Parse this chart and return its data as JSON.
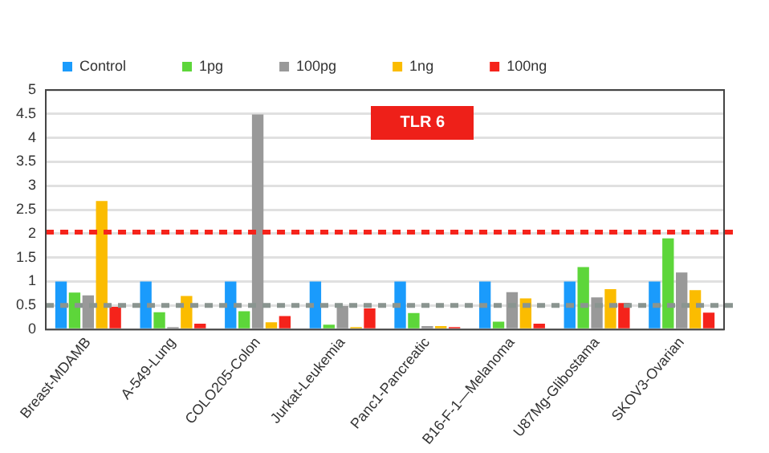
{
  "chart_data": {
    "type": "bar",
    "annotations": [
      "TLR 6"
    ],
    "categories": [
      "Breast-MDAMB",
      "A-549-Lung",
      "COLO205-Colon",
      "Jurkat-Leukemia",
      "Panc1-Pancreatic",
      "B16-F-1—Melanoma",
      "U87Mg-Glibostama",
      "SKOV3-Ovarian"
    ],
    "series": [
      {
        "name": "Control",
        "color": "#1a9bfc",
        "values": [
          1,
          1,
          1,
          1,
          1,
          1,
          1,
          1
        ]
      },
      {
        "name": "1pg",
        "color": "#5dd63a",
        "values": [
          0.77,
          0.36,
          0.38,
          0.1,
          0.34,
          0.16,
          1.3,
          1.9
        ]
      },
      {
        "name": "100pg",
        "color": "#999999",
        "values": [
          0.71,
          0.05,
          4.49,
          0.49,
          0.07,
          0.78,
          0.67,
          1.19
        ]
      },
      {
        "name": "1ng",
        "color": "#fbbc00",
        "values": [
          2.68,
          0.7,
          0.15,
          0.05,
          0.07,
          0.65,
          0.84,
          0.82
        ]
      },
      {
        "name": "100ng",
        "color": "#f5231b",
        "values": [
          0.47,
          0.12,
          0.28,
          0.44,
          0.05,
          0.12,
          0.55,
          0.35
        ]
      }
    ],
    "ylim": [
      0,
      5
    ],
    "yticks": [
      0,
      0.5,
      1,
      1.5,
      2,
      2.5,
      3,
      3.5,
      4,
      4.5,
      5
    ],
    "grid": "y",
    "legend": "top",
    "ref_lines": [
      {
        "axis": "y",
        "value": 2.03,
        "color": "#f5231b",
        "line_style": "dashed"
      },
      {
        "axis": "y",
        "value": 0.5,
        "color": "#8a9590",
        "line_style": "dashed"
      }
    ]
  }
}
